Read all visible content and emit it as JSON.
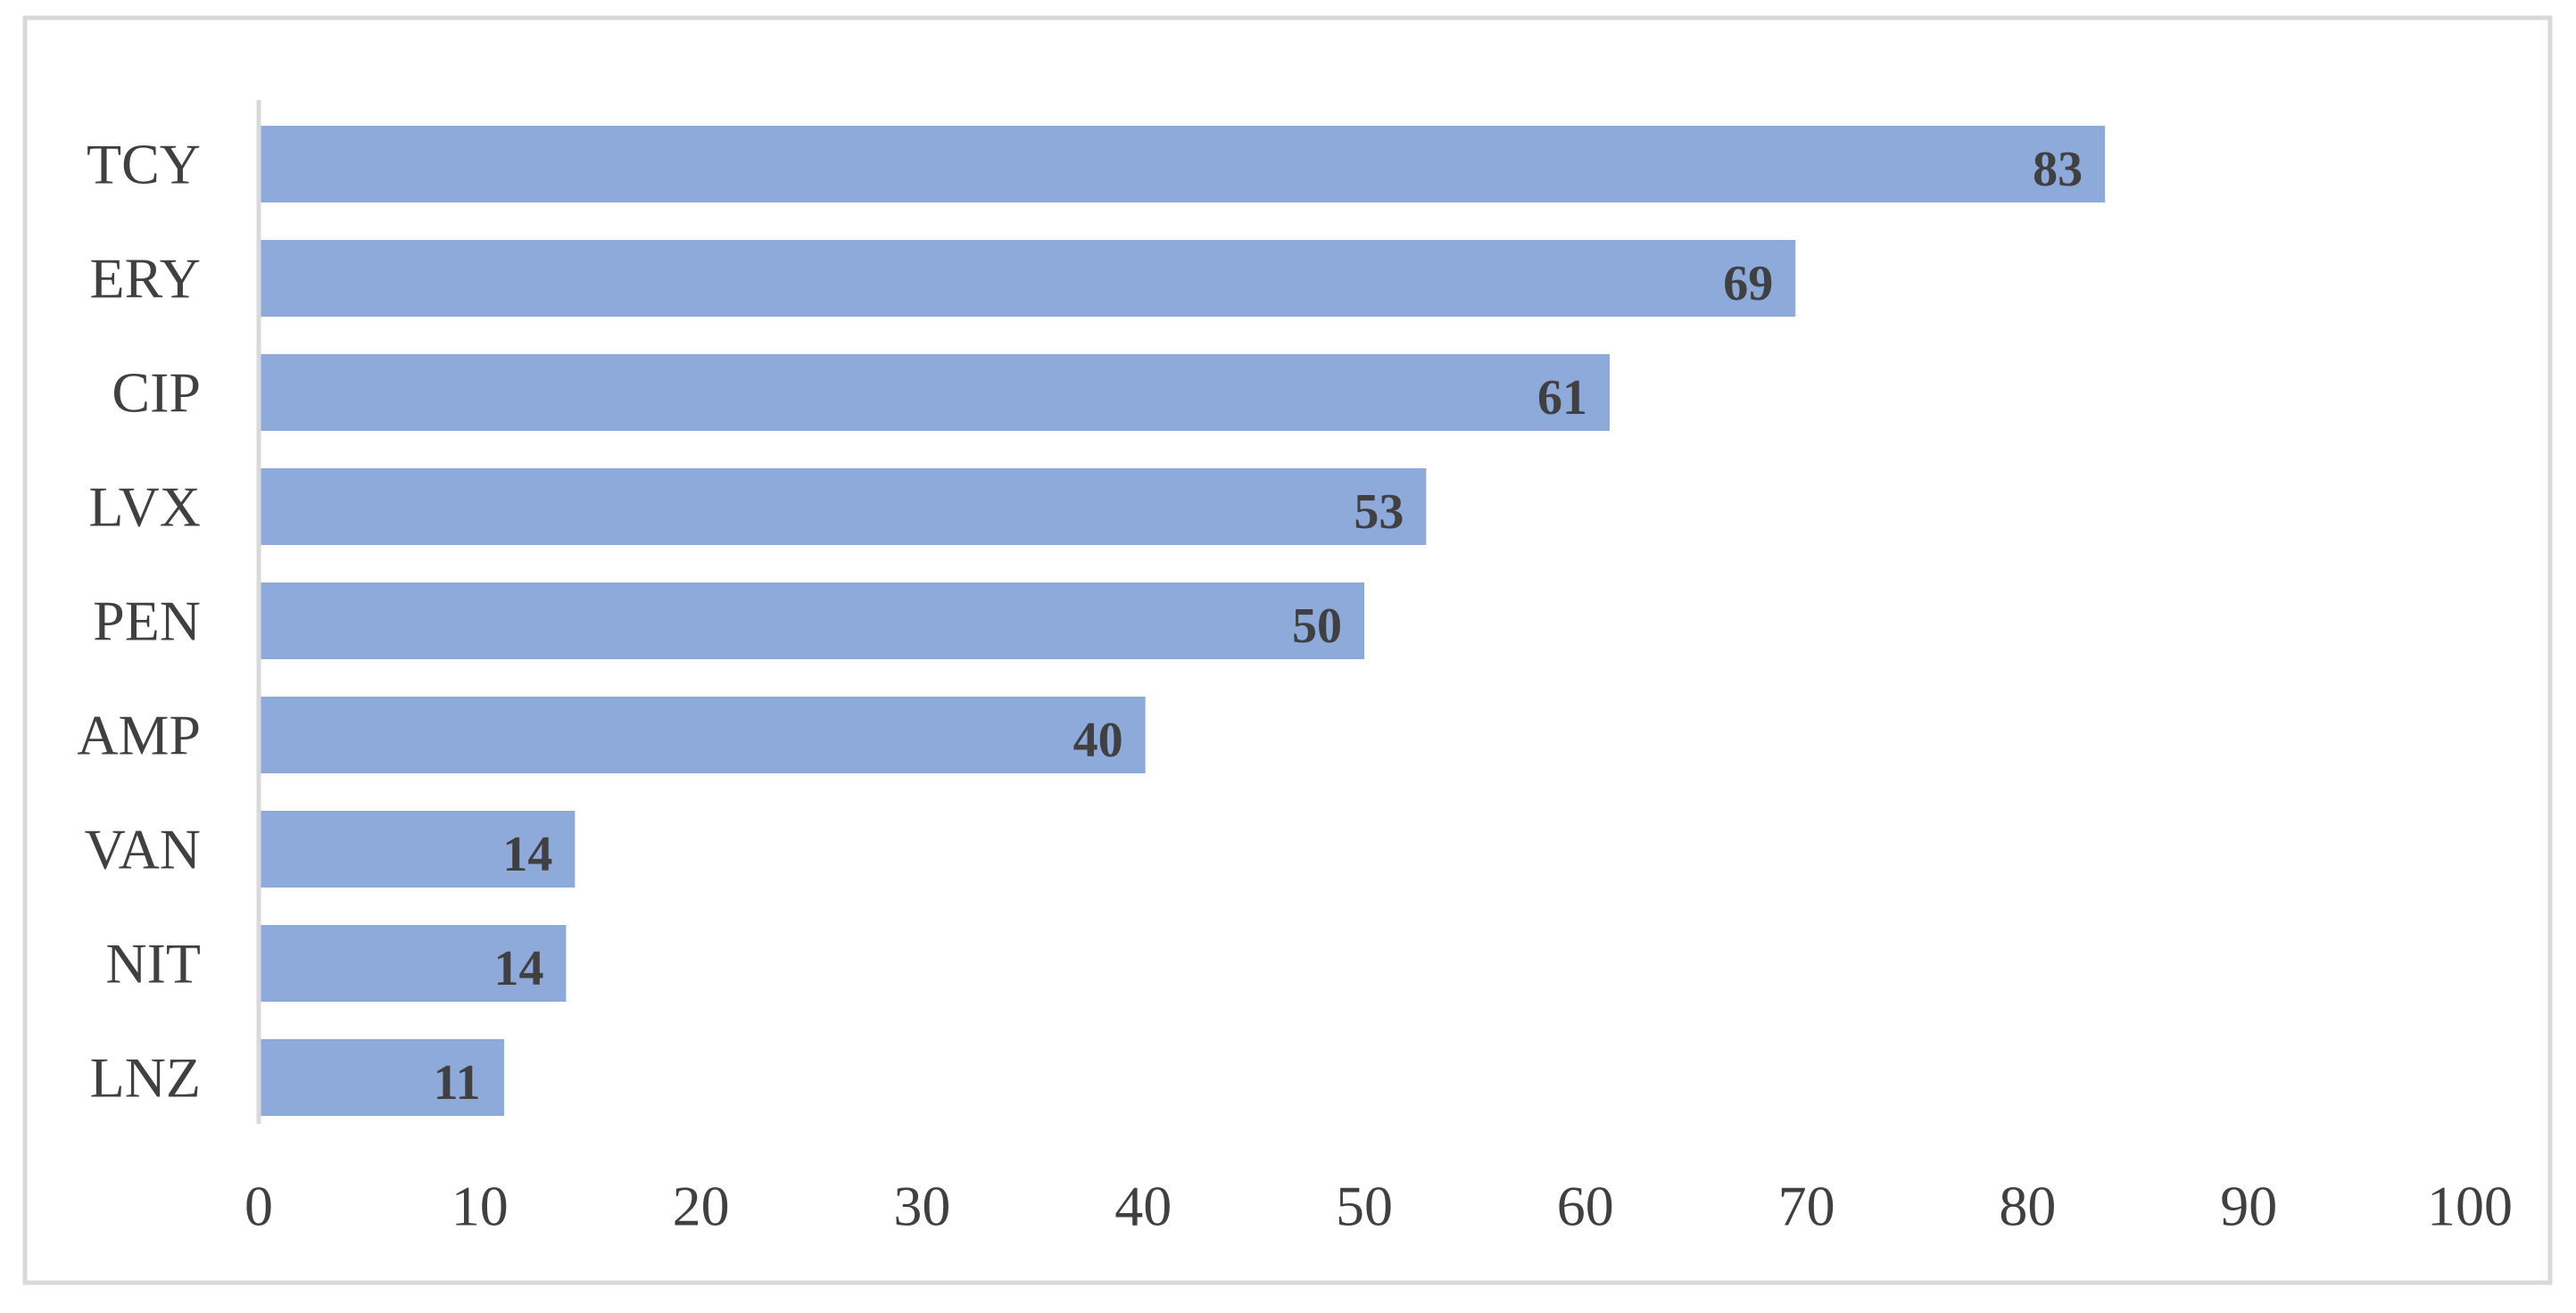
{
  "chart_data": {
    "type": "bar",
    "orientation": "horizontal",
    "categories": [
      "TCY",
      "ERY",
      "CIP",
      "LVX",
      "PEN",
      "AMP",
      "VAN",
      "NIT",
      "LNZ"
    ],
    "values": [
      83,
      69,
      61,
      53,
      50,
      40,
      14,
      14,
      11
    ],
    "bar_values": [
      83.5,
      69.5,
      61.1,
      52.8,
      50.0,
      40.1,
      14.3,
      13.9,
      11.1
    ],
    "data_labels": [
      "83",
      "69",
      "61",
      "53",
      "50",
      "40",
      "14",
      "14",
      "11"
    ],
    "title": "",
    "xlabel": "",
    "ylabel": "",
    "xlim": [
      0,
      100
    ],
    "x_ticks": [
      0,
      10,
      20,
      30,
      40,
      50,
      60,
      70,
      80,
      90,
      100
    ],
    "grid": false,
    "legend": "none",
    "colors": {
      "bar": "#8eaadb",
      "axis": "#d9d9d9",
      "text": "#404040",
      "frame": "#d9d9d9"
    }
  }
}
